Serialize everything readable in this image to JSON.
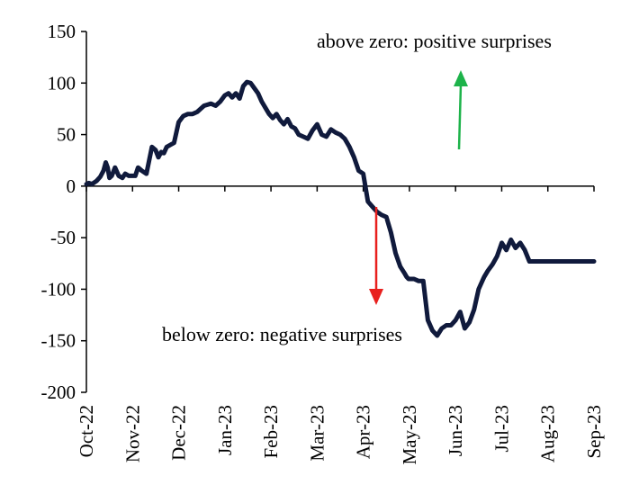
{
  "chart_data": {
    "type": "line",
    "title": "",
    "xlabel": "",
    "ylabel": "",
    "ylim": [
      -200,
      150
    ],
    "yticks": [
      150,
      100,
      50,
      0,
      -50,
      -100,
      -150,
      -200
    ],
    "xlim": [
      0,
      11
    ],
    "x_tick_labels": [
      "Oct-22",
      "Nov-22",
      "Dec-22",
      "Jan-23",
      "Feb-23",
      "Mar-23",
      "Apr-23",
      "May-23",
      "Jun-23",
      "Jul-23",
      "Aug-23",
      "Sep-23"
    ],
    "grid": false,
    "line_color": "#101a3c",
    "series": [
      {
        "x": [
          0,
          0.05,
          0.12,
          0.22,
          0.3,
          0.37,
          0.42,
          0.46,
          0.5,
          0.55,
          0.62,
          0.7,
          0.78,
          0.84,
          0.92,
          1.0,
          1.06,
          1.12,
          1.2,
          1.3,
          1.42,
          1.5,
          1.56,
          1.62,
          1.68,
          1.74,
          1.82,
          1.9,
          2.0,
          2.1,
          2.2,
          2.3,
          2.4,
          2.55,
          2.7,
          2.8,
          2.9,
          3.0,
          3.08,
          3.16,
          3.24,
          3.32,
          3.4,
          3.48,
          3.56,
          3.64,
          3.72,
          3.8,
          3.88,
          3.96,
          4.04,
          4.12,
          4.2,
          4.28,
          4.36,
          4.44,
          4.52,
          4.6,
          4.7,
          4.8,
          4.9,
          5.0,
          5.1,
          5.2,
          5.3,
          5.4,
          5.5,
          5.6,
          5.7,
          5.8,
          5.9,
          6.0,
          6.1,
          6.2,
          6.3,
          6.4,
          6.5,
          6.6,
          6.7,
          6.8,
          6.9,
          6.94,
          6.98,
          7.02,
          7.1,
          7.2,
          7.3,
          7.4,
          7.5,
          7.6,
          7.7,
          7.8,
          7.9,
          8.0,
          8.1,
          8.2,
          8.3,
          8.4,
          8.5,
          8.6,
          8.62,
          8.7,
          8.8,
          8.9,
          9.0,
          9.1,
          9.2,
          9.3,
          9.4,
          9.5,
          9.6,
          9.7,
          9.8,
          9.9,
          10.0,
          10.1,
          10.2,
          10.3,
          10.4,
          10.5,
          10.6,
          10.7,
          10.8,
          10.9,
          11.0
        ],
        "y": [
          2,
          3,
          2,
          5,
          9,
          15,
          23,
          18,
          8,
          10,
          18,
          10,
          8,
          12,
          10,
          10,
          10,
          18,
          15,
          12,
          38,
          35,
          28,
          33,
          32,
          38,
          40,
          42,
          62,
          68,
          70,
          70,
          72,
          78,
          80,
          78,
          82,
          88,
          90,
          86,
          90,
          85,
          97,
          101,
          100,
          95,
          90,
          82,
          76,
          70,
          66,
          70,
          64,
          60,
          65,
          58,
          56,
          50,
          48,
          46,
          54,
          60,
          50,
          48,
          55,
          52,
          50,
          46,
          38,
          28,
          15,
          12,
          -15,
          -20,
          -25,
          -28,
          -30,
          -45,
          -65,
          -78,
          -85,
          -88,
          -90,
          -90,
          -90,
          -92,
          -92,
          -130,
          -140,
          -145,
          -138,
          -135,
          -135,
          -130,
          -122,
          -138,
          -132,
          -120,
          -100,
          -90,
          -88,
          -82,
          -76,
          -68,
          -55,
          -62,
          -52,
          -60,
          -55,
          -62,
          -73,
          -73,
          -73,
          -73,
          -73,
          -73,
          -73,
          -73,
          -73,
          -73,
          -73,
          -73,
          -73,
          -73,
          -73
        ]
      }
    ]
  },
  "annotations": {
    "above": "above zero: positive surprises",
    "below": "below zero: negative surprises",
    "up_arrow_color": "#1db34a",
    "down_arrow_color": "#e8201e"
  }
}
